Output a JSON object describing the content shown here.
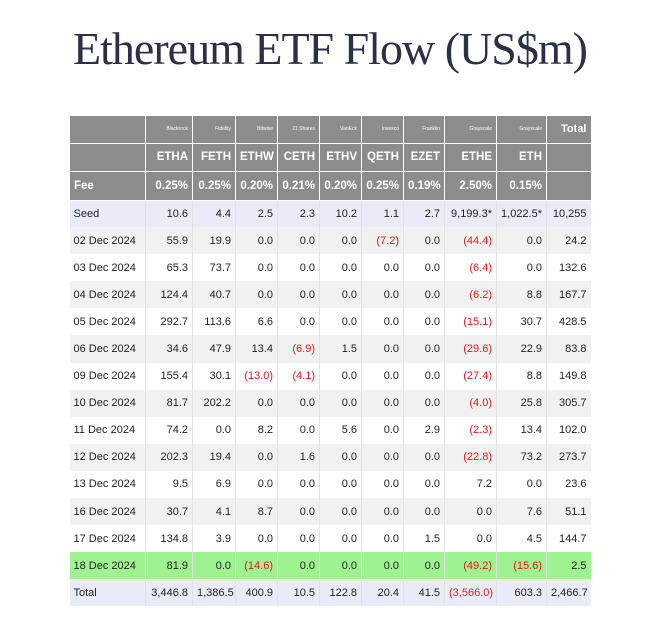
{
  "title": "Ethereum ETF Flow (US$m)",
  "table": {
    "issuers": [
      "Blackrock",
      "Fidelity",
      "Bitwise",
      "21 Shares",
      "VanEck",
      "Invesco",
      "Franklin",
      "Grayscale",
      "Grayscale"
    ],
    "total_label": "Total",
    "tickers": [
      "ETHA",
      "FETH",
      "ETHW",
      "CETH",
      "ETHV",
      "QETH",
      "EZET",
      "ETHE",
      "ETH"
    ],
    "fee_label": "Fee",
    "fees": [
      "0.25%",
      "0.25%",
      "0.20%",
      "0.21%",
      "0.20%",
      "0.25%",
      "0.19%",
      "2.50%",
      "0.15%"
    ],
    "rows": [
      {
        "label": "Seed",
        "cells": [
          "10.6",
          "4.4",
          "2.5",
          "2.3",
          "10.2",
          "1.1",
          "2.7",
          "9,199.3*",
          "1,022.5*",
          "10,255"
        ]
      },
      {
        "label": "02 Dec 2024",
        "cells": [
          "55.9",
          "19.9",
          "0.0",
          "0.0",
          "0.0",
          "(7.2)",
          "0.0",
          "(44.4)",
          "0.0",
          "24.2"
        ]
      },
      {
        "label": "03 Dec 2024",
        "cells": [
          "65.3",
          "73.7",
          "0.0",
          "0.0",
          "0.0",
          "0.0",
          "0.0",
          "(6.4)",
          "0.0",
          "132.6"
        ]
      },
      {
        "label": "04 Dec 2024",
        "cells": [
          "124.4",
          "40.7",
          "0.0",
          "0.0",
          "0.0",
          "0.0",
          "0.0",
          "(6.2)",
          "8.8",
          "167.7"
        ]
      },
      {
        "label": "05 Dec 2024",
        "cells": [
          "292.7",
          "113.6",
          "6.6",
          "0.0",
          "0.0",
          "0.0",
          "0.0",
          "(15.1)",
          "30.7",
          "428.5"
        ]
      },
      {
        "label": "06 Dec 2024",
        "cells": [
          "34.6",
          "47.9",
          "13.4",
          "(6.9)",
          "1.5",
          "0.0",
          "0.0",
          "(29.6)",
          "22.9",
          "83.8"
        ]
      },
      {
        "label": "09 Dec 2024",
        "cells": [
          "155.4",
          "30.1",
          "(13.0)",
          "(4.1)",
          "0.0",
          "0.0",
          "0.0",
          "(27.4)",
          "8.8",
          "149.8"
        ]
      },
      {
        "label": "10 Dec 2024",
        "cells": [
          "81.7",
          "202.2",
          "0.0",
          "0.0",
          "0.0",
          "0.0",
          "0.0",
          "(4.0)",
          "25.8",
          "305.7"
        ]
      },
      {
        "label": "11 Dec 2024",
        "cells": [
          "74.2",
          "0.0",
          "8.2",
          "0.0",
          "5.6",
          "0.0",
          "2.9",
          "(2.3)",
          "13.4",
          "102.0"
        ]
      },
      {
        "label": "12 Dec 2024",
        "cells": [
          "202.3",
          "19.4",
          "0.0",
          "1.6",
          "0.0",
          "0.0",
          "0.0",
          "(22.8)",
          "73.2",
          "273.7"
        ]
      },
      {
        "label": "13 Dec 2024",
        "cells": [
          "9.5",
          "6.9",
          "0.0",
          "0.0",
          "0.0",
          "0.0",
          "0.0",
          "7.2",
          "0.0",
          "23.6"
        ]
      },
      {
        "label": "16 Dec 2024",
        "cells": [
          "30.7",
          "4.1",
          "8.7",
          "0.0",
          "0.0",
          "0.0",
          "0.0",
          "0.0",
          "7.6",
          "51.1"
        ]
      },
      {
        "label": "17 Dec 2024",
        "cells": [
          "134.8",
          "3.9",
          "0.0",
          "0.0",
          "0.0",
          "0.0",
          "1.5",
          "0.0",
          "4.5",
          "144.7"
        ]
      },
      {
        "label": "18 Dec 2024",
        "cells": [
          "81.9",
          "0.0",
          "(14.6)",
          "0.0",
          "0.0",
          "0.0",
          "0.0",
          "(49.2)",
          "(15.6)",
          "2.5"
        ]
      },
      {
        "label": "Total",
        "cells": [
          "3,446.8",
          "1,386.5",
          "400.9",
          "10.5",
          "122.8",
          "20.4",
          "41.5",
          "(3,566.0)",
          "603.3",
          "2,466.7"
        ]
      }
    ]
  }
}
